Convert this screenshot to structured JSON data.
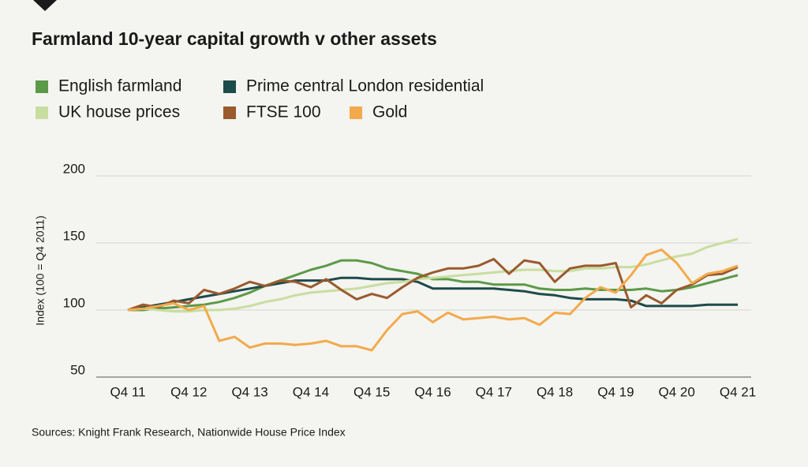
{
  "chart_data": {
    "type": "line",
    "title": "Farmland 10-year capital growth v other assets",
    "y_label": "Index (100 = Q4 2011)",
    "source": "Sources: Knight Frank Research, Nationwide House Price Index",
    "categories": [
      "Q4 11",
      null,
      null,
      null,
      "Q4 12",
      null,
      null,
      null,
      "Q4 13",
      null,
      null,
      null,
      "Q4 14",
      null,
      null,
      null,
      "Q4 15",
      null,
      null,
      null,
      "Q4 16",
      null,
      null,
      null,
      "Q4 17",
      null,
      null,
      null,
      "Q4 18",
      null,
      null,
      null,
      "Q4 19",
      null,
      null,
      null,
      "Q4 20",
      null,
      null,
      null,
      "Q4 21"
    ],
    "series": [
      {
        "name": "English farmland",
        "color": "#5b9a48",
        "values": [
          100,
          100,
          101,
          102,
          103,
          104,
          106,
          109,
          113,
          118,
          122,
          126,
          130,
          133,
          137,
          137,
          135,
          131,
          129,
          127,
          123,
          123,
          121,
          121,
          119,
          119,
          119,
          116,
          115,
          115,
          116,
          115,
          115,
          115,
          116,
          114,
          115,
          117,
          120,
          123,
          126
        ]
      },
      {
        "name": "Prime central London residential",
        "color": "#1d4a4a",
        "values": [
          100,
          102,
          104,
          106,
          108,
          110,
          112,
          114,
          116,
          118,
          120,
          122,
          122,
          122,
          124,
          124,
          123,
          123,
          123,
          121,
          116,
          116,
          116,
          116,
          116,
          115,
          114,
          112,
          111,
          109,
          108,
          108,
          108,
          107,
          103,
          103,
          103,
          103,
          104,
          104,
          104
        ]
      },
      {
        "name": "UK house prices",
        "color": "#c8dea0",
        "values": [
          100,
          101,
          100,
          99,
          99,
          100,
          100,
          101,
          103,
          106,
          108,
          111,
          113,
          114,
          115,
          116,
          118,
          120,
          121,
          123,
          124,
          125,
          126,
          127,
          128,
          129,
          130,
          130,
          129,
          129,
          131,
          131,
          132,
          132,
          134,
          137,
          140,
          142,
          147,
          150,
          153
        ]
      },
      {
        "name": "FTSE 100",
        "color": "#9a5a2e",
        "values": [
          100,
          104,
          102,
          107,
          105,
          115,
          112,
          116,
          121,
          118,
          122,
          121,
          117,
          123,
          115,
          108,
          112,
          109,
          117,
          124,
          128,
          131,
          131,
          133,
          138,
          127,
          137,
          135,
          121,
          131,
          133,
          133,
          135,
          102,
          111,
          105,
          115,
          119,
          126,
          127,
          132
        ]
      },
      {
        "name": "Gold",
        "color": "#f2aa4c",
        "values": [
          100,
          101,
          103,
          105,
          100,
          103,
          77,
          80,
          72,
          75,
          75,
          74,
          75,
          77,
          73,
          73,
          70,
          85,
          97,
          99,
          91,
          98,
          93,
          94,
          95,
          93,
          94,
          89,
          98,
          97,
          109,
          117,
          113,
          126,
          141,
          145,
          135,
          120,
          127,
          129,
          133
        ]
      }
    ],
    "ylim": [
      50,
      200
    ],
    "yticks": [
      50,
      100,
      150,
      200
    ],
    "grid": true
  }
}
